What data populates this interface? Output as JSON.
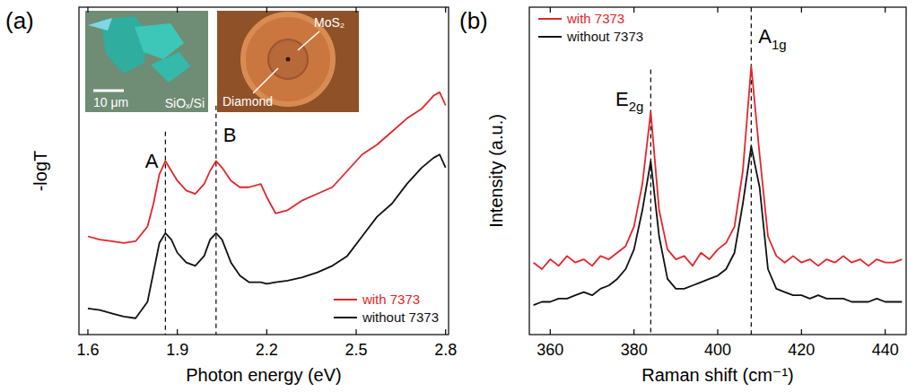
{
  "chart_data": [
    {
      "type": "line",
      "label": "(a)",
      "x_label": "Photon energy (eV)",
      "y_label": "-logT",
      "x": [
        1.6,
        1.64,
        1.68,
        1.72,
        1.76,
        1.8,
        1.82,
        1.84,
        1.86,
        1.88,
        1.9,
        1.93,
        1.96,
        1.99,
        2.01,
        2.03,
        2.05,
        2.08,
        2.11,
        2.14,
        2.18,
        2.2,
        2.23,
        2.27,
        2.32,
        2.37,
        2.42,
        2.47,
        2.52,
        2.57,
        2.62,
        2.67,
        2.72,
        2.76,
        2.78,
        2.8
      ],
      "series": [
        {
          "name": "with 7373",
          "color": "#e3262b",
          "values": [
            3.0,
            2.9,
            2.85,
            2.8,
            2.85,
            3.3,
            4.0,
            4.9,
            5.3,
            5.0,
            4.7,
            4.4,
            4.3,
            4.6,
            5.0,
            5.3,
            5.1,
            4.7,
            4.5,
            4.5,
            4.6,
            4.2,
            3.7,
            3.8,
            4.1,
            4.3,
            4.5,
            5.0,
            5.5,
            5.8,
            6.2,
            6.6,
            6.9,
            7.3,
            7.4,
            7.0
          ]
        },
        {
          "name": "without 7373",
          "color": "#111111",
          "values": [
            0.8,
            0.75,
            0.65,
            0.55,
            0.5,
            1.0,
            1.9,
            2.8,
            3.1,
            2.9,
            2.5,
            2.2,
            2.1,
            2.4,
            2.9,
            3.1,
            2.9,
            2.2,
            1.8,
            1.6,
            1.6,
            1.55,
            1.6,
            1.65,
            1.75,
            1.9,
            2.1,
            2.4,
            3.0,
            3.6,
            4.0,
            4.6,
            5.1,
            5.4,
            5.5,
            5.1
          ]
        }
      ],
      "xlim": [
        1.57,
        2.81
      ],
      "xticks": [
        1.6,
        1.9,
        2.2,
        2.5,
        2.8
      ],
      "ylim": [
        0,
        10
      ],
      "yticks": [],
      "tick_labels": "x",
      "legend": "lower right",
      "annotations": [
        {
          "text": "A",
          "x": 1.86,
          "y": 5.1
        },
        {
          "text": "B",
          "x": 2.03,
          "y": 5.9
        }
      ],
      "inset_labels": [
        "10 μm",
        "SiOₓ/Si",
        "MoS₂",
        "Diamond"
      ]
    },
    {
      "type": "line",
      "label": "(b)",
      "x_label": "Raman shift (cm⁻¹)",
      "y_label": "Intensity (a.u.)",
      "x": [
        356,
        358,
        360,
        362,
        364,
        366,
        368,
        370,
        372,
        374,
        376,
        378,
        380,
        382,
        384,
        386,
        388,
        390,
        392,
        394,
        396,
        398,
        400,
        402,
        404,
        406,
        408,
        410,
        412,
        414,
        416,
        418,
        420,
        422,
        424,
        426,
        428,
        430,
        432,
        434,
        436,
        438,
        440,
        442,
        444
      ],
      "series": [
        {
          "name": "with 7373",
          "color": "#e3262b",
          "values": [
            2.2,
            2.0,
            2.3,
            2.1,
            2.4,
            2.2,
            2.3,
            2.1,
            2.4,
            2.3,
            2.5,
            2.7,
            3.3,
            4.6,
            6.8,
            3.8,
            2.6,
            2.3,
            2.4,
            2.1,
            2.5,
            2.3,
            2.6,
            2.8,
            3.3,
            5.0,
            8.2,
            5.5,
            3.0,
            2.4,
            2.2,
            2.4,
            2.2,
            2.3,
            2.1,
            2.3,
            2.2,
            2.4,
            2.2,
            2.3,
            2.1,
            2.3,
            2.2,
            2.2,
            2.3
          ]
        },
        {
          "name": "without 7373",
          "color": "#111111",
          "values": [
            0.9,
            1.0,
            1.0,
            1.1,
            1.1,
            1.2,
            1.3,
            1.2,
            1.4,
            1.5,
            1.7,
            2.0,
            2.6,
            3.8,
            5.3,
            3.0,
            1.7,
            1.4,
            1.4,
            1.5,
            1.6,
            1.7,
            1.8,
            2.0,
            2.5,
            4.0,
            5.75,
            4.5,
            2.0,
            1.4,
            1.3,
            1.2,
            1.2,
            1.1,
            1.2,
            1.1,
            1.1,
            1.1,
            1.0,
            1.0,
            1.0,
            1.1,
            1.0,
            1.0,
            1.0
          ]
        }
      ],
      "xlim": [
        355,
        445
      ],
      "xticks": [
        360,
        380,
        400,
        420,
        440
      ],
      "ylim": [
        0,
        10
      ],
      "yticks": [],
      "tick_labels": "x",
      "legend": "upper left",
      "annotations": [
        {
          "text": "E2g",
          "x": 384,
          "y": 7.0
        },
        {
          "text": "A1g",
          "x": 408,
          "y": 8.9
        }
      ]
    }
  ]
}
